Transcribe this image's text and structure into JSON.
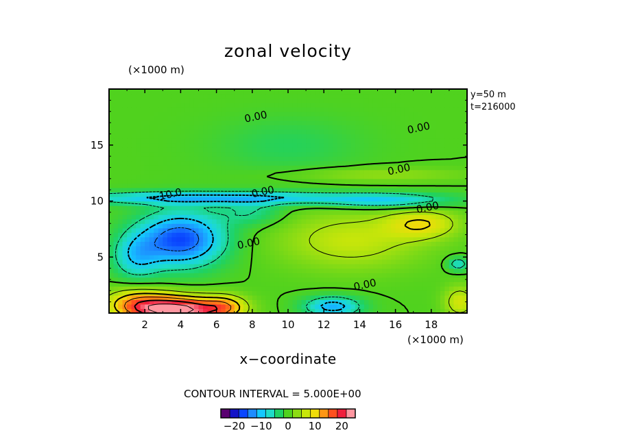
{
  "chart_data": {
    "type": "heatmap",
    "title": "zonal velocity",
    "xlabel": "x−coordinate",
    "x_unit": "(×1000 m)",
    "y_unit": "(×1000 m)",
    "xlim": [
      0,
      20
    ],
    "ylim": [
      0,
      20
    ],
    "x_ticks": [
      2,
      4,
      6,
      8,
      10,
      12,
      14,
      16,
      18
    ],
    "y_ticks": [
      5,
      10,
      15
    ],
    "x_tick_labels": [
      "2",
      "4",
      "6",
      "8",
      "10",
      "12",
      "14",
      "16",
      "18"
    ],
    "y_tick_labels": [
      "5",
      "10",
      "15"
    ],
    "info": [
      "y=50  m",
      "t=216000"
    ],
    "contour_interval_label": "CONTOUR INTERVAL = 5.000E+00",
    "contour_labels": [
      {
        "text": "0.00",
        "x": 8.2,
        "y": 17.5
      },
      {
        "text": "0.00",
        "x": 17.3,
        "y": 16.5
      },
      {
        "text": "0.00",
        "x": 16.2,
        "y": 12.8
      },
      {
        "text": "0.00",
        "x": 8.6,
        "y": 10.8
      },
      {
        "text": "−10.0",
        "x": 3.2,
        "y": 10.5
      },
      {
        "text": "0.00",
        "x": 17.8,
        "y": 9.4
      },
      {
        "text": "0.00",
        "x": 7.8,
        "y": 6.2
      },
      {
        "text": "0.00",
        "x": 14.3,
        "y": 2.5
      }
    ],
    "colorbar": {
      "range": [
        -25,
        25
      ],
      "ticks": [
        -20,
        -10,
        0,
        10,
        20
      ],
      "tick_labels": [
        "−20",
        "−10",
        "0",
        "10",
        "20"
      ],
      "colors": [
        "#5a0070",
        "#1414c8",
        "#0a46ff",
        "#1e8cff",
        "#14c8ff",
        "#1edcc8",
        "#1ed264",
        "#50d21e",
        "#8cdc14",
        "#c8e60a",
        "#f0dc0a",
        "#ff9614",
        "#ff501e",
        "#f01e3c",
        "#ff96a0"
      ]
    },
    "field": {
      "background": 0,
      "features": [
        {
          "x": 3.8,
          "y": 0.3,
          "rx": 2.6,
          "ry": 1.2,
          "value": 27
        },
        {
          "x": 1.5,
          "y": 1.0,
          "rx": 1.8,
          "ry": 1.3,
          "value": 10
        },
        {
          "x": 6.5,
          "y": 0.6,
          "rx": 1.2,
          "ry": 1.0,
          "value": 9
        },
        {
          "x": 12.5,
          "y": 0.6,
          "rx": 1.6,
          "ry": 0.9,
          "value": -12
        },
        {
          "x": 19.6,
          "y": 1.0,
          "rx": 0.9,
          "ry": 1.4,
          "value": 8
        },
        {
          "x": 4.0,
          "y": 6.6,
          "rx": 2.4,
          "ry": 2.4,
          "value": -18
        },
        {
          "x": 1.5,
          "y": 5.0,
          "rx": 1.3,
          "ry": 2.0,
          "value": -8
        },
        {
          "x": 6.0,
          "y": 10.3,
          "rx": 9.0,
          "ry": 0.6,
          "value": -11
        },
        {
          "x": 15.5,
          "y": 10.0,
          "rx": 3.5,
          "ry": 0.7,
          "value": -8
        },
        {
          "x": 8.0,
          "y": 9.0,
          "rx": 1.8,
          "ry": 1.2,
          "value": -5
        },
        {
          "x": 13.5,
          "y": 6.5,
          "rx": 4.0,
          "ry": 2.6,
          "value": 7
        },
        {
          "x": 17.5,
          "y": 8.0,
          "rx": 2.0,
          "ry": 1.3,
          "value": 9
        },
        {
          "x": 19.5,
          "y": 4.4,
          "rx": 0.6,
          "ry": 0.6,
          "value": -8
        },
        {
          "x": 15.0,
          "y": 12.4,
          "rx": 5.0,
          "ry": 0.6,
          "value": 4
        },
        {
          "x": 10.0,
          "y": 15.0,
          "rx": 4.0,
          "ry": 2.5,
          "value": -3
        }
      ],
      "contour_levels": [
        -15,
        -10,
        -5,
        0,
        5,
        10,
        15,
        20,
        25
      ]
    }
  }
}
